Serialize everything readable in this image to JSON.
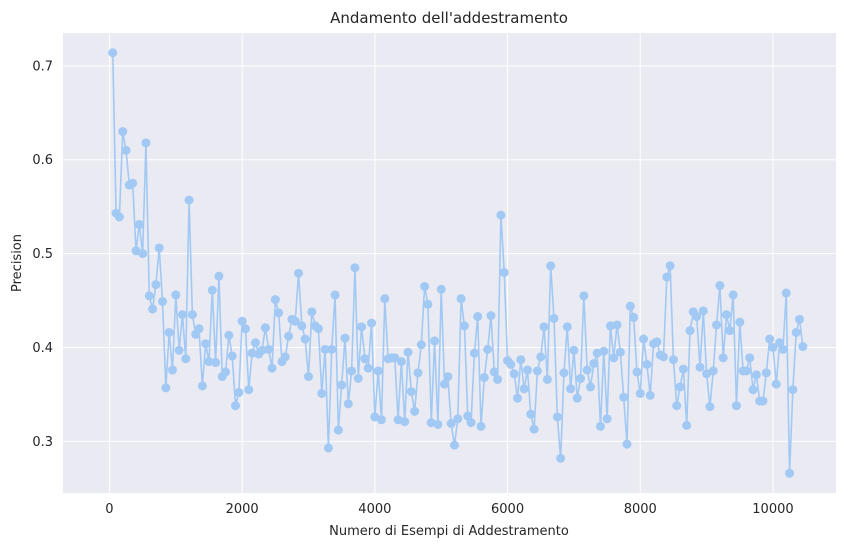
{
  "chart_data": {
    "type": "line",
    "title": "Andamento dell'addestramento",
    "xlabel": "Numero di Esempi di Addestramento",
    "ylabel": "Precision",
    "xlim": [
      -700,
      10950
    ],
    "ylim": [
      0.245,
      0.735
    ],
    "x_ticks": [
      0,
      2000,
      4000,
      6000,
      8000,
      10000
    ],
    "y_ticks": [
      0.3,
      0.4,
      0.5,
      0.6,
      0.7
    ],
    "y_tick_labels": [
      "0.3",
      "0.4",
      "0.5",
      "0.6",
      "0.7"
    ],
    "grid": true,
    "background": "#eaeaf2",
    "series_color": "#a1c9f4",
    "x": [
      50,
      100,
      150,
      200,
      250,
      300,
      350,
      400,
      450,
      500,
      550,
      600,
      650,
      700,
      750,
      800,
      850,
      900,
      950,
      1000,
      1050,
      1100,
      1150,
      1200,
      1250,
      1300,
      1350,
      1400,
      1450,
      1500,
      1550,
      1600,
      1650,
      1700,
      1750,
      1800,
      1850,
      1900,
      1950,
      2000,
      2050,
      2100,
      2150,
      2200,
      2250,
      2300,
      2350,
      2400,
      2450,
      2500,
      2550,
      2600,
      2650,
      2700,
      2750,
      2800,
      2850,
      2900,
      2950,
      3000,
      3050,
      3100,
      3150,
      3200,
      3250,
      3300,
      3350,
      3400,
      3450,
      3500,
      3550,
      3600,
      3650,
      3700,
      3750,
      3800,
      3850,
      3900,
      3950,
      4000,
      4050,
      4100,
      4150,
      4200,
      4250,
      4300,
      4350,
      4400,
      4450,
      4500,
      4550,
      4600,
      4650,
      4700,
      4750,
      4800,
      4850,
      4900,
      4950,
      5000,
      5050,
      5100,
      5150,
      5200,
      5250,
      5300,
      5350,
      5400,
      5450,
      5500,
      5550,
      5600,
      5650,
      5700,
      5750,
      5800,
      5850,
      5900,
      5950,
      6000,
      6050,
      6100,
      6150,
      6200,
      6250,
      6300,
      6350,
      6400,
      6450,
      6500,
      6550,
      6600,
      6650,
      6700,
      6750,
      6800,
      6850,
      6900,
      6950,
      7000,
      7050,
      7100,
      7150,
      7200,
      7250,
      7300,
      7350,
      7400,
      7450,
      7500,
      7550,
      7600,
      7650,
      7700,
      7750,
      7800,
      7850,
      7900,
      7950,
      8000,
      8050,
      8100,
      8150,
      8200,
      8250,
      8300,
      8350,
      8400,
      8450,
      8500,
      8550,
      8600,
      8650,
      8700,
      8750,
      8800,
      8850,
      8900,
      8950,
      9000,
      9050,
      9100,
      9150,
      9200,
      9250,
      9300,
      9350,
      9400,
      9450,
      9500,
      9550,
      9600,
      9650,
      9700,
      9750,
      9800,
      9850,
      9900,
      9950,
      10000,
      10050,
      10100,
      10150,
      10200,
      10250,
      10300,
      10350,
      10400,
      10450
    ],
    "y": [
      0.714,
      0.543,
      0.539,
      0.63,
      0.61,
      0.573,
      0.575,
      0.503,
      0.531,
      0.5,
      0.618,
      0.455,
      0.441,
      0.467,
      0.506,
      0.449,
      0.357,
      0.416,
      0.376,
      0.456,
      0.397,
      0.435,
      0.388,
      0.557,
      0.435,
      0.414,
      0.42,
      0.359,
      0.404,
      0.385,
      0.461,
      0.384,
      0.476,
      0.369,
      0.374,
      0.413,
      0.391,
      0.338,
      0.352,
      0.428,
      0.42,
      0.355,
      0.394,
      0.405,
      0.393,
      0.397,
      0.421,
      0.398,
      0.378,
      0.451,
      0.437,
      0.385,
      0.39,
      0.412,
      0.43,
      0.428,
      0.479,
      0.423,
      0.409,
      0.369,
      0.438,
      0.423,
      0.42,
      0.351,
      0.398,
      0.293,
      0.398,
      0.456,
      0.312,
      0.36,
      0.41,
      0.34,
      0.375,
      0.485,
      0.367,
      0.422,
      0.388,
      0.378,
      0.426,
      0.326,
      0.375,
      0.323,
      0.452,
      0.388,
      0.389,
      0.389,
      0.323,
      0.385,
      0.321,
      0.395,
      0.353,
      0.332,
      0.373,
      0.403,
      0.465,
      0.446,
      0.32,
      0.407,
      0.318,
      0.462,
      0.361,
      0.369,
      0.319,
      0.296,
      0.324,
      0.452,
      0.423,
      0.327,
      0.32,
      0.394,
      0.433,
      0.316,
      0.368,
      0.398,
      0.434,
      0.374,
      0.366,
      0.541,
      0.48,
      0.386,
      0.382,
      0.372,
      0.346,
      0.387,
      0.356,
      0.376,
      0.329,
      0.313,
      0.375,
      0.39,
      0.422,
      0.366,
      0.487,
      0.431,
      0.326,
      0.282,
      0.373,
      0.422,
      0.356,
      0.397,
      0.346,
      0.367,
      0.455,
      0.376,
      0.358,
      0.383,
      0.394,
      0.316,
      0.396,
      0.324,
      0.423,
      0.389,
      0.424,
      0.395,
      0.347,
      0.297,
      0.444,
      0.432,
      0.374,
      0.351,
      0.409,
      0.382,
      0.349,
      0.404,
      0.406,
      0.392,
      0.39,
      0.475,
      0.487,
      0.387,
      0.338,
      0.358,
      0.377,
      0.317,
      0.418,
      0.438,
      0.433,
      0.379,
      0.439,
      0.372,
      0.337,
      0.375,
      0.424,
      0.466,
      0.389,
      0.435,
      0.418,
      0.456,
      0.338,
      0.427,
      0.375,
      0.375,
      0.389,
      0.355,
      0.371,
      0.343,
      0.343,
      0.373,
      0.409,
      0.4,
      0.361,
      0.405,
      0.398,
      0.458,
      0.266,
      0.355,
      0.416,
      0.43,
      0.401
    ]
  }
}
